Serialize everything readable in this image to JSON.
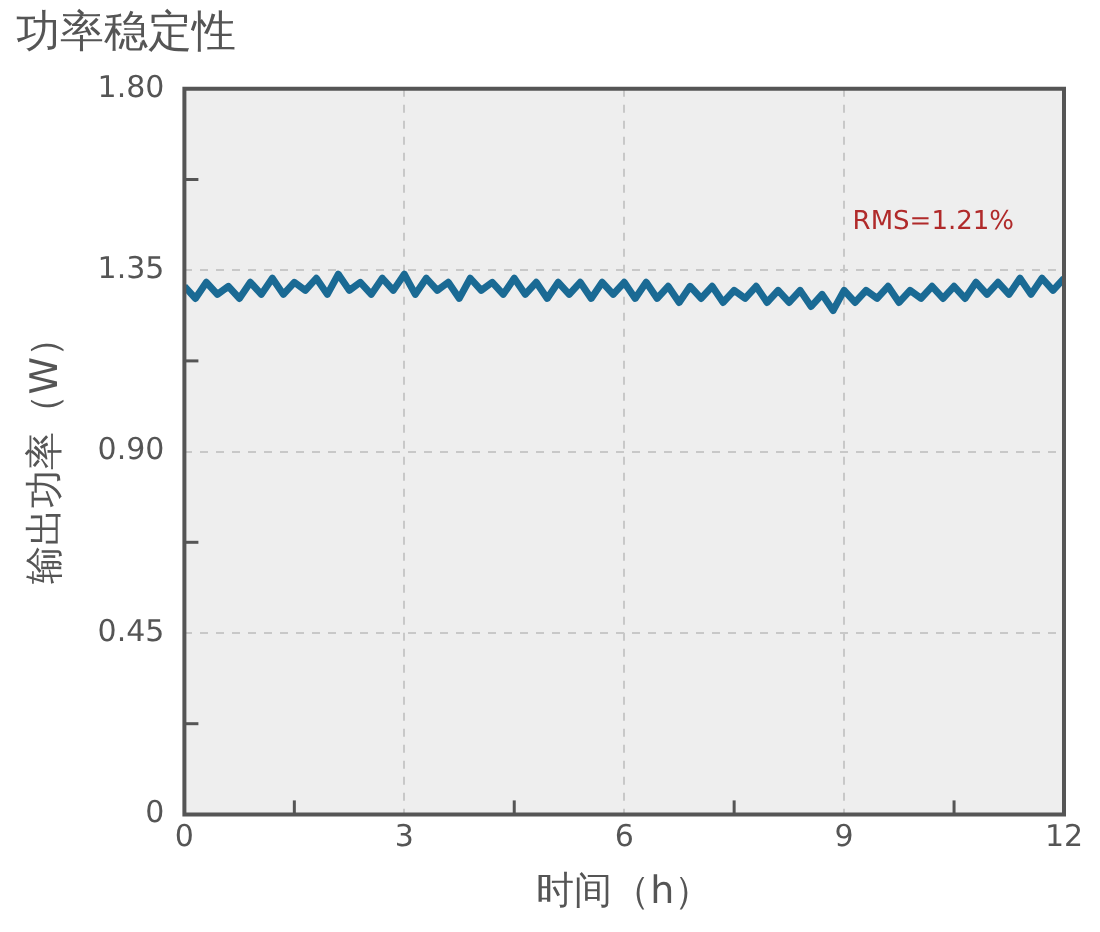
{
  "chart_data": {
    "type": "line",
    "title": "功率稳定性",
    "xlabel": "时间（h）",
    "ylabel": "输出功率（W）",
    "x": [
      0,
      0.15,
      0.3,
      0.45,
      0.6,
      0.75,
      0.9,
      1.05,
      1.2,
      1.35,
      1.5,
      1.65,
      1.8,
      1.95,
      2.1,
      2.25,
      2.4,
      2.55,
      2.7,
      2.85,
      3,
      3.15,
      3.3,
      3.45,
      3.6,
      3.75,
      3.9,
      4.05,
      4.2,
      4.35,
      4.5,
      4.65,
      4.8,
      4.95,
      5.1,
      5.25,
      5.4,
      5.55,
      5.7,
      5.85,
      6,
      6.15,
      6.3,
      6.45,
      6.6,
      6.75,
      6.9,
      7.05,
      7.2,
      7.35,
      7.5,
      7.65,
      7.8,
      7.95,
      8.1,
      8.25,
      8.4,
      8.55,
      8.7,
      8.85,
      9,
      9.15,
      9.3,
      9.45,
      9.6,
      9.75,
      9.9,
      10.05,
      10.2,
      10.35,
      10.5,
      10.65,
      10.8,
      10.95,
      11.1,
      11.25,
      11.4,
      11.55,
      11.7,
      11.85,
      12
    ],
    "series": [
      {
        "color": "#1a6a94",
        "values": [
          1.31,
          1.28,
          1.32,
          1.29,
          1.31,
          1.28,
          1.32,
          1.29,
          1.33,
          1.29,
          1.32,
          1.3,
          1.33,
          1.29,
          1.34,
          1.3,
          1.32,
          1.29,
          1.33,
          1.3,
          1.34,
          1.29,
          1.33,
          1.3,
          1.32,
          1.28,
          1.33,
          1.3,
          1.32,
          1.29,
          1.33,
          1.29,
          1.32,
          1.28,
          1.32,
          1.29,
          1.32,
          1.28,
          1.32,
          1.29,
          1.32,
          1.28,
          1.32,
          1.28,
          1.31,
          1.27,
          1.31,
          1.28,
          1.31,
          1.27,
          1.3,
          1.28,
          1.31,
          1.27,
          1.3,
          1.27,
          1.3,
          1.26,
          1.29,
          1.25,
          1.3,
          1.27,
          1.3,
          1.28,
          1.31,
          1.27,
          1.3,
          1.28,
          1.31,
          1.28,
          1.31,
          1.28,
          1.32,
          1.29,
          1.32,
          1.29,
          1.33,
          1.29,
          1.33,
          1.3,
          1.33
        ]
      }
    ],
    "xlim": [
      0,
      12
    ],
    "xticks": [
      0,
      {
        "value": 1.5,
        "label": null
      },
      3,
      {
        "value": 4.5,
        "label": null
      },
      6,
      {
        "value": 7.5,
        "label": null
      },
      9,
      {
        "value": 10.5,
        "label": null
      },
      12
    ],
    "ylim": [
      0,
      1.8
    ],
    "yticks": [
      {
        "value": 0,
        "label": "0"
      },
      {
        "value": 0.225,
        "label": null
      },
      {
        "value": 0.45,
        "label": "0.45"
      },
      {
        "value": 0.675,
        "label": null
      },
      {
        "value": 0.9,
        "label": "0.90"
      },
      {
        "value": 1.125,
        "label": null
      },
      {
        "value": 1.35,
        "label": "1.35"
      },
      {
        "value": 1.575,
        "label": null
      },
      {
        "value": 1.8,
        "label": "1.80"
      }
    ],
    "grid": true,
    "legend": false,
    "marker": "none",
    "line_style": "solid",
    "annotations": [
      "RMS=1.21%"
    ]
  }
}
